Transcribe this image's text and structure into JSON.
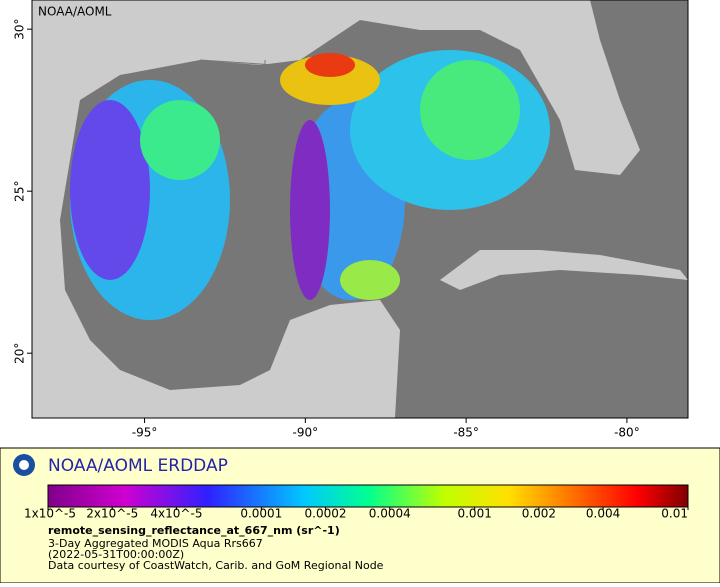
{
  "map": {
    "attribution": "NOAA/AOML",
    "lon_range": [
      -98.5,
      -78.1
    ],
    "lat_range": [
      18.0,
      30.9
    ],
    "lon_ticks": [
      {
        "value": -95,
        "label": "-95°"
      },
      {
        "value": -90,
        "label": "-90°"
      },
      {
        "value": -85,
        "label": "-85°"
      },
      {
        "value": -80,
        "label": "-80°"
      }
    ],
    "lat_ticks": [
      {
        "value": 30,
        "label": "30°"
      },
      {
        "value": 25,
        "label": "25°"
      },
      {
        "value": 20,
        "label": "20°"
      }
    ]
  },
  "legend": {
    "title": "NOAA/AOML ERDDAP",
    "colorbar_range": [
      1e-05,
      0.01
    ],
    "colorbar_scale": "log",
    "colorbar_ticks": [
      {
        "value": 1e-05,
        "label": "1x10^-5"
      },
      {
        "value": 2e-05,
        "label": "2x10^-5"
      },
      {
        "value": 4e-05,
        "label": "4x10^-5"
      },
      {
        "value": 0.0001,
        "label": "0.0001"
      },
      {
        "value": 0.0002,
        "label": "0.0002"
      },
      {
        "value": 0.0004,
        "label": "0.0004"
      },
      {
        "value": 0.001,
        "label": "0.001"
      },
      {
        "value": 0.002,
        "label": "0.002"
      },
      {
        "value": 0.004,
        "label": "0.004"
      },
      {
        "value": 0.01,
        "label": "0.01"
      }
    ],
    "variable": "remote_sensing_reflectance_at_667_nm (sr^-1)",
    "lines": [
      "3-Day Aggregated MODIS Aqua Rrs667",
      "(2022-05-31T00:00:00Z)",
      "Data courtesy of CoastWatch, Carib. and GoM Regional Node"
    ]
  }
}
